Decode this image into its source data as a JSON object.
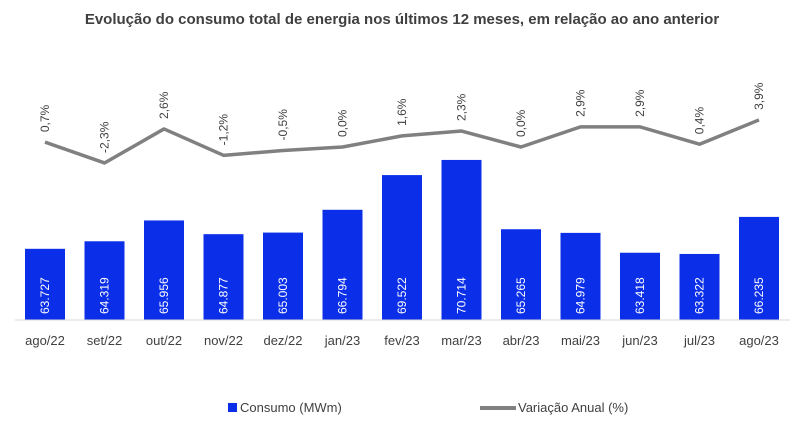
{
  "chart_data": {
    "type": "bar+line",
    "title": "Evolução do consumo total de energia nos últimos 12 meses, em relação ao ano anterior",
    "categories": [
      "ago/22",
      "set/22",
      "out/22",
      "nov/22",
      "dez/22",
      "jan/23",
      "fev/23",
      "mar/23",
      "abr/23",
      "mai/23",
      "jun/23",
      "jul/23",
      "ago/23"
    ],
    "series": [
      {
        "name": "Consumo (MWm)",
        "type": "bar",
        "axis": "primary",
        "color": "#0B2FE8",
        "values": [
          63.727,
          64.319,
          65.956,
          64.877,
          65.003,
          66.794,
          69.522,
          70.714,
          65.265,
          64.979,
          63.418,
          63.322,
          66.235
        ],
        "labels": [
          "63.727",
          "64.319",
          "65.956",
          "64.877",
          "65.003",
          "66.794",
          "69.522",
          "70.714",
          "65.265",
          "64.979",
          "63.418",
          "63.322",
          "66.235"
        ]
      },
      {
        "name": "Variação Anual (%)",
        "type": "line",
        "axis": "secondary",
        "color": "#808080",
        "values": [
          0.7,
          -2.3,
          2.6,
          -1.2,
          -0.5,
          0.0,
          1.6,
          2.3,
          0.0,
          2.9,
          2.9,
          0.4,
          3.9
        ],
        "labels": [
          "0,7%",
          "-2,3%",
          "2,6%",
          "-1,2%",
          "-0,5%",
          "0,0%",
          "1,6%",
          "2,3%",
          "0,0%",
          "2,9%",
          "2,9%",
          "0,4%",
          "3,9%"
        ]
      }
    ],
    "legend": "bottom",
    "grid": false
  }
}
